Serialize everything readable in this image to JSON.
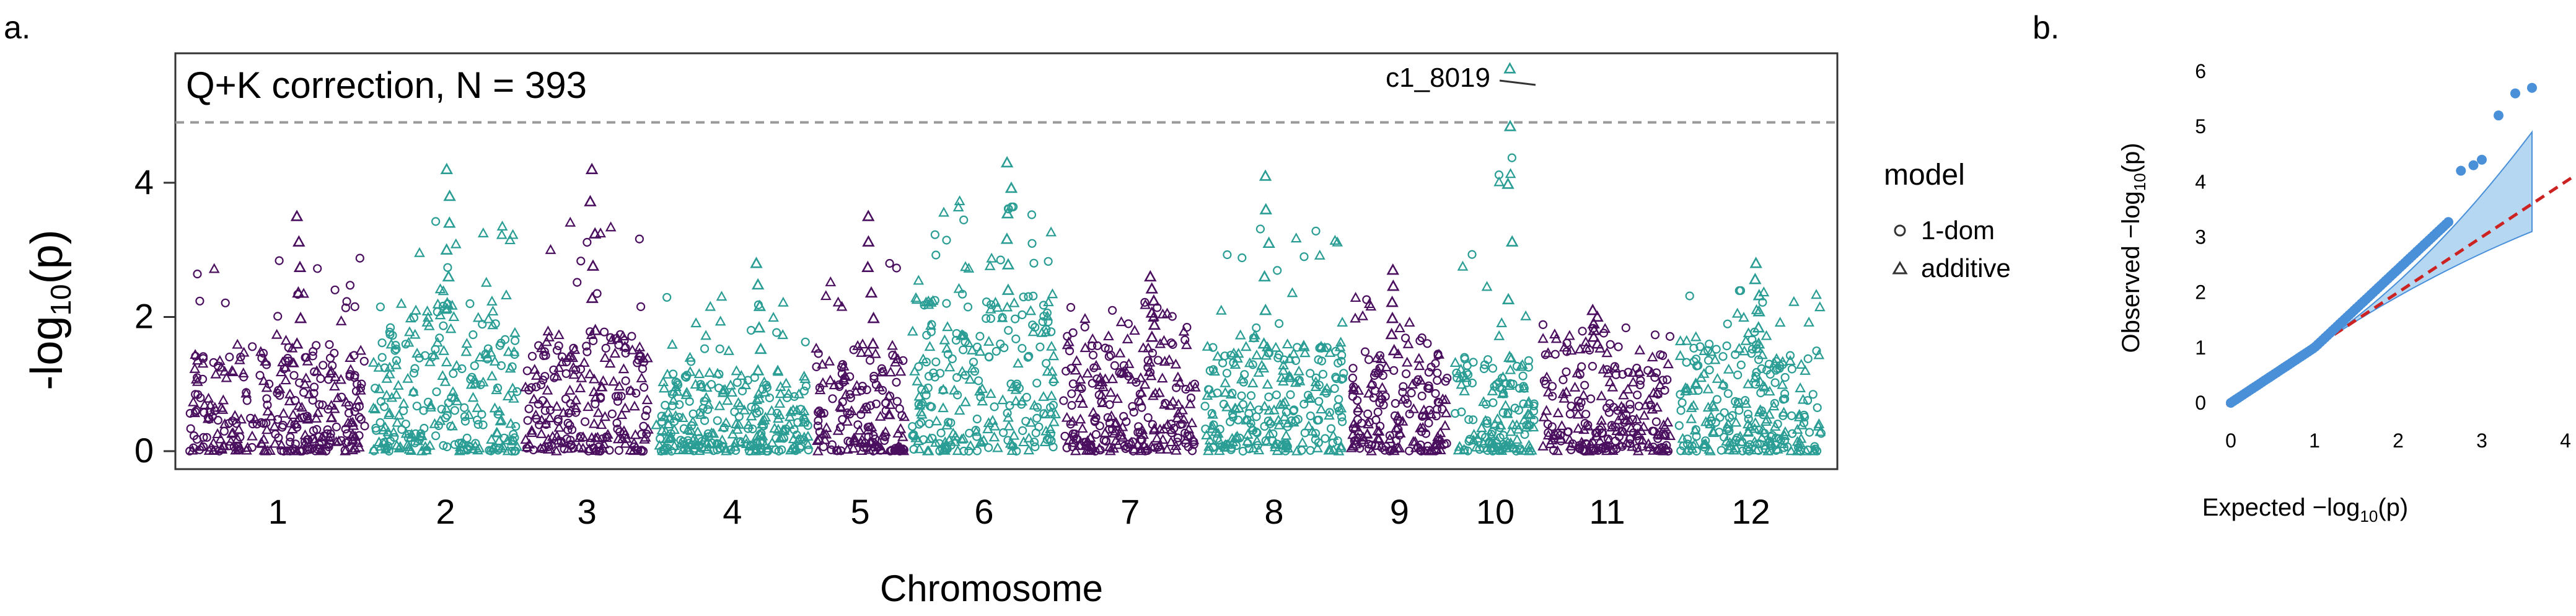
{
  "panels": {
    "a_label": "a.",
    "b_label": "b."
  },
  "colors": {
    "purple": "#4a0f5e",
    "teal": "#2a9d94",
    "qq_points": "#4a90d9",
    "qq_band": "#9ec9ec",
    "qq_line": "#cc2222",
    "threshold": "#999999"
  },
  "chart_data": [
    {
      "type": "scatter",
      "subtype": "manhattan",
      "title": "Q+K correction, N = 393",
      "xlabel": "Chromosome",
      "ylabel": "-log10(p)",
      "ylabel_main": "-log",
      "ylabel_sub": "10",
      "ylabel_paren": "(p)",
      "ylim": [
        0,
        5.8
      ],
      "y_ticks": [
        0,
        2,
        4
      ],
      "significance_threshold": 4.9,
      "chromosomes": [
        "1",
        "2",
        "3",
        "4",
        "5",
        "6",
        "7",
        "8",
        "9",
        "10",
        "11",
        "12"
      ],
      "chromosome_colors": [
        "purple",
        "teal",
        "purple",
        "teal",
        "purple",
        "teal",
        "purple",
        "teal",
        "purple",
        "teal",
        "purple",
        "teal"
      ],
      "legend": {
        "title": "model",
        "entries": [
          {
            "label": "1-dom",
            "marker": "circle"
          },
          {
            "label": "additive",
            "marker": "triangle"
          }
        ],
        "placement": "right"
      },
      "annotation": {
        "label": "c1_8019",
        "chromosome": "10",
        "y": 5.7
      },
      "chromosome_peaks": [
        {
          "chr": "1",
          "max": 3.5,
          "bulk": 1.6
        },
        {
          "chr": "2",
          "max": 4.2,
          "bulk": 2.2
        },
        {
          "chr": "3",
          "max": 4.2,
          "bulk": 1.8
        },
        {
          "chr": "4",
          "max": 2.8,
          "bulk": 1.2
        },
        {
          "chr": "5",
          "max": 3.5,
          "bulk": 1.6
        },
        {
          "chr": "6",
          "max": 4.3,
          "bulk": 2.4
        },
        {
          "chr": "7",
          "max": 2.6,
          "bulk": 1.7
        },
        {
          "chr": "8",
          "max": 4.1,
          "bulk": 1.6
        },
        {
          "chr": "9",
          "max": 2.7,
          "bulk": 1.5
        },
        {
          "chr": "10",
          "max": 5.7,
          "bulk": 1.4
        },
        {
          "chr": "11",
          "max": 2.1,
          "bulk": 1.6
        },
        {
          "chr": "12",
          "max": 2.8,
          "bulk": 1.6
        }
      ]
    },
    {
      "type": "scatter",
      "subtype": "qq",
      "xlabel": "Expected  -log10(p)",
      "xlabel_main": "Expected  −log",
      "xlabel_sub": "10",
      "xlabel_paren": "(p)",
      "ylabel": "Observed  -log10(p)",
      "ylabel_main": "Observed  −log",
      "ylabel_sub": "10",
      "ylabel_paren": "(p)",
      "xlim": [
        0,
        4
      ],
      "ylim": [
        0,
        6
      ],
      "x_ticks": [
        0,
        1,
        2,
        3,
        4
      ],
      "y_ticks": [
        0,
        1,
        2,
        3,
        4,
        5,
        6
      ],
      "expected_max": 3.6,
      "confidence_band_upper_end": 4.9,
      "confidence_band_lower_end": 3.1,
      "top_points": [
        {
          "x": 3.6,
          "y": 5.7
        },
        {
          "x": 3.4,
          "y": 5.6
        },
        {
          "x": 3.2,
          "y": 5.2
        },
        {
          "x": 3.0,
          "y": 4.4
        },
        {
          "x": 2.9,
          "y": 4.3
        },
        {
          "x": 2.75,
          "y": 4.2
        }
      ]
    }
  ]
}
